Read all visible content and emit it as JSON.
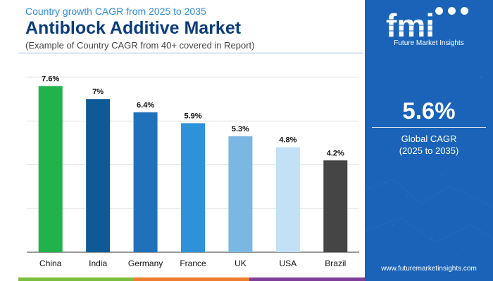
{
  "header": {
    "subtitle": "Country growth CAGR from 2025 to 2035",
    "title": "Antiblock Additive Market",
    "note": "(Example of Country CAGR from 40+ covered in Report)"
  },
  "chart_data": {
    "type": "bar",
    "categories": [
      "China",
      "India",
      "Germany",
      "France",
      "UK",
      "USA",
      "Brazil"
    ],
    "values": [
      7.6,
      7,
      6.4,
      5.9,
      5.3,
      4.8,
      4.2
    ],
    "value_labels": [
      "7.6%",
      "7%",
      "6.4%",
      "5.9%",
      "5.3%",
      "4.8%",
      "4.2%"
    ],
    "ylim": [
      0,
      8
    ],
    "grid": true,
    "bar_colors": [
      "#21b24a",
      "#0e5a96",
      "#1f72b9",
      "#2e92d9",
      "#7ab7e2",
      "#c2e1f4",
      "#454545"
    ]
  },
  "sidebar": {
    "logo_text": "fmi",
    "brand": "Future Market Insights",
    "cagr_value": "5.6%",
    "cagr_label": "Global CAGR",
    "cagr_period": "(2025 to 2035)",
    "website": "www.futuremarketinsights.com",
    "background_color": "#1a63b8"
  },
  "footer": {
    "colors": [
      "#7bbd3c",
      "#f07d2b",
      "#7f3f98",
      "#1a63b8"
    ]
  }
}
